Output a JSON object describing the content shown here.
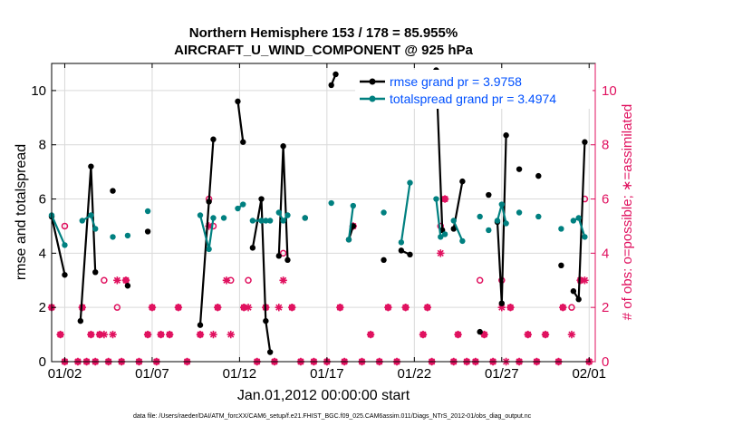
{
  "chart_data": {
    "type": "line",
    "title": "Northern Hemisphere 153 / 178 = 85.955%",
    "subtitle": "AIRCRAFT_U_WIND_COMPONENT @ 925 hPa",
    "xlabel": "Jan.01,2012 00:00:00 start",
    "ylabel": "rmse and totalspread",
    "y2label": "# of obs: o=possible; ∗=assimilated",
    "footer": "data file: /Users/raeder/DAI/ATM_forcXX/CAM6_setup/f.e21.FHIST_BGC.f09_025.CAM6assim.011/Diags_NTrS_2012-01/obs_diag_output.nc",
    "xlim": [
      1.25,
      32.35
    ],
    "ylim": [
      0,
      11
    ],
    "y2lim": [
      0,
      11
    ],
    "xtick_values": [
      2,
      7,
      12,
      17,
      22,
      27,
      32
    ],
    "xtick_labels": [
      "01/02",
      "01/07",
      "01/12",
      "01/17",
      "01/22",
      "01/27",
      "02/01"
    ],
    "ytick_values": [
      0,
      2,
      4,
      6,
      8,
      10
    ],
    "ytick_labels": [
      "0",
      "2",
      "4",
      "6",
      "8",
      "10"
    ],
    "y2tick_values": [
      0,
      2,
      4,
      6,
      8,
      10
    ],
    "y2tick_labels": [
      "0",
      "2",
      "4",
      "6",
      "8",
      "10"
    ],
    "legend_position": "top-right",
    "colors": {
      "rmse": "#000000",
      "spread": "#008080",
      "obs": "#e0115f"
    },
    "series": [
      {
        "name": "rmse grand pr = 3.9758",
        "axis": "left",
        "color": "#000000",
        "points": [
          [
            1.25,
            5.35
          ],
          [
            2.0,
            3.2
          ],
          [
            2.5,
            null
          ],
          [
            2.9,
            1.5
          ],
          [
            3.5,
            7.2
          ],
          [
            3.75,
            3.3
          ],
          [
            4.0,
            null
          ],
          [
            4.75,
            6.3
          ],
          [
            5.25,
            null
          ],
          [
            5.6,
            2.8
          ],
          [
            6.0,
            null
          ],
          [
            6.75,
            4.8
          ],
          [
            7.5,
            null
          ],
          [
            9.75,
            1.35
          ],
          [
            10.25,
            5.9
          ],
          [
            10.5,
            8.2
          ],
          [
            10.75,
            null
          ],
          [
            11.9,
            9.6
          ],
          [
            12.2,
            8.1
          ],
          [
            12.5,
            null
          ],
          [
            12.75,
            4.2
          ],
          [
            13.25,
            6.0
          ],
          [
            13.5,
            1.5
          ],
          [
            13.75,
            0.35
          ],
          [
            14.0,
            null
          ],
          [
            14.25,
            3.9
          ],
          [
            14.5,
            7.95
          ],
          [
            14.75,
            3.75
          ],
          [
            15.0,
            null
          ],
          [
            15.75,
            5.3
          ],
          [
            16.0,
            null
          ],
          [
            17.25,
            10.2
          ],
          [
            17.5,
            10.6
          ],
          [
            17.75,
            null
          ],
          [
            18.25,
            4.5
          ],
          [
            18.5,
            5.0
          ],
          [
            18.75,
            null
          ],
          [
            20.25,
            3.75
          ],
          [
            20.5,
            null
          ],
          [
            21.25,
            4.1
          ],
          [
            21.75,
            3.95
          ],
          [
            22.0,
            null
          ],
          [
            23.25,
            10.75
          ],
          [
            23.6,
            4.85
          ],
          [
            23.75,
            null
          ],
          [
            24.25,
            4.9
          ],
          [
            24.75,
            6.65
          ],
          [
            25.0,
            null
          ],
          [
            25.75,
            1.1
          ],
          [
            26.0,
            null
          ],
          [
            26.25,
            6.15
          ],
          [
            26.5,
            null
          ],
          [
            26.75,
            5.15
          ],
          [
            27.0,
            2.15
          ],
          [
            27.25,
            8.35
          ],
          [
            27.5,
            null
          ],
          [
            28.0,
            7.1
          ],
          [
            28.5,
            null
          ],
          [
            29.1,
            6.85
          ],
          [
            29.5,
            null
          ],
          [
            30.4,
            3.55
          ],
          [
            30.75,
            null
          ],
          [
            31.1,
            2.6
          ],
          [
            31.4,
            2.3
          ],
          [
            31.75,
            8.1
          ],
          [
            32.0,
            null
          ]
        ]
      },
      {
        "name": "totalspread grand pr = 3.4974",
        "axis": "left",
        "color": "#008080",
        "points": [
          [
            1.25,
            5.4
          ],
          [
            2.0,
            4.3
          ],
          [
            2.5,
            null
          ],
          [
            3.0,
            5.2
          ],
          [
            3.5,
            5.4
          ],
          [
            3.75,
            4.9
          ],
          [
            4.0,
            null
          ],
          [
            4.75,
            4.6
          ],
          [
            5.25,
            null
          ],
          [
            5.6,
            4.65
          ],
          [
            6.0,
            null
          ],
          [
            6.75,
            5.55
          ],
          [
            7.5,
            null
          ],
          [
            9.75,
            5.4
          ],
          [
            10.25,
            4.15
          ],
          [
            10.5,
            5.3
          ],
          [
            10.75,
            null
          ],
          [
            11.1,
            5.3
          ],
          [
            11.5,
            null
          ],
          [
            11.9,
            5.65
          ],
          [
            12.2,
            5.8
          ],
          [
            12.5,
            null
          ],
          [
            12.75,
            5.2
          ],
          [
            13.25,
            5.2
          ],
          [
            13.5,
            5.2
          ],
          [
            13.75,
            5.2
          ],
          [
            14.0,
            null
          ],
          [
            14.25,
            5.5
          ],
          [
            14.5,
            5.2
          ],
          [
            14.75,
            5.4
          ],
          [
            15.0,
            null
          ],
          [
            15.75,
            5.3
          ],
          [
            16.0,
            null
          ],
          [
            17.25,
            5.85
          ],
          [
            17.5,
            null
          ],
          [
            18.25,
            4.5
          ],
          [
            18.5,
            5.75
          ],
          [
            18.75,
            null
          ],
          [
            20.25,
            5.5
          ],
          [
            20.5,
            null
          ],
          [
            21.25,
            4.4
          ],
          [
            21.75,
            6.6
          ],
          [
            22.0,
            null
          ],
          [
            23.25,
            6.0
          ],
          [
            23.5,
            4.6
          ],
          [
            23.75,
            4.7
          ],
          [
            24.0,
            null
          ],
          [
            24.25,
            5.2
          ],
          [
            24.75,
            4.45
          ],
          [
            25.0,
            null
          ],
          [
            25.75,
            5.35
          ],
          [
            26.0,
            null
          ],
          [
            26.25,
            4.85
          ],
          [
            26.5,
            null
          ],
          [
            26.75,
            5.2
          ],
          [
            27.0,
            5.8
          ],
          [
            27.25,
            5.1
          ],
          [
            27.5,
            null
          ],
          [
            28.0,
            5.5
          ],
          [
            28.5,
            null
          ],
          [
            29.1,
            5.35
          ],
          [
            29.5,
            null
          ],
          [
            30.4,
            4.9
          ],
          [
            30.75,
            null
          ],
          [
            31.1,
            5.2
          ],
          [
            31.4,
            5.3
          ],
          [
            31.75,
            4.6
          ],
          [
            32.0,
            null
          ]
        ]
      }
    ],
    "obs_possible": [
      [
        1.25,
        2
      ],
      [
        1.75,
        1
      ],
      [
        2.0,
        5
      ],
      [
        2.0,
        0
      ],
      [
        2.75,
        0
      ],
      [
        3.0,
        2
      ],
      [
        3.25,
        0
      ],
      [
        3.5,
        1
      ],
      [
        3.75,
        0
      ],
      [
        4.0,
        1
      ],
      [
        4.25,
        3
      ],
      [
        4.5,
        0
      ],
      [
        5.0,
        2
      ],
      [
        5.25,
        0
      ],
      [
        5.5,
        3
      ],
      [
        6.25,
        0
      ],
      [
        6.75,
        1
      ],
      [
        7.0,
        2
      ],
      [
        7.25,
        0
      ],
      [
        7.5,
        1
      ],
      [
        8.0,
        1
      ],
      [
        8.5,
        2
      ],
      [
        9.0,
        0
      ],
      [
        9.75,
        1
      ],
      [
        10.25,
        6
      ],
      [
        10.5,
        5
      ],
      [
        10.75,
        2
      ],
      [
        11.5,
        3
      ],
      [
        12.25,
        2
      ],
      [
        12.5,
        3
      ],
      [
        13.0,
        0
      ],
      [
        13.5,
        2
      ],
      [
        14.0,
        0
      ],
      [
        14.5,
        4
      ],
      [
        15.0,
        2
      ],
      [
        15.5,
        0
      ],
      [
        16.25,
        0
      ],
      [
        17.0,
        0
      ],
      [
        17.75,
        2
      ],
      [
        18.0,
        0
      ],
      [
        18.5,
        5
      ],
      [
        19.0,
        0
      ],
      [
        19.5,
        1
      ],
      [
        20.0,
        0
      ],
      [
        20.5,
        2
      ],
      [
        21.0,
        0
      ],
      [
        21.5,
        2
      ],
      [
        22.5,
        1
      ],
      [
        22.75,
        2
      ],
      [
        23.0,
        0
      ],
      [
        23.5,
        5
      ],
      [
        23.75,
        6
      ],
      [
        24.25,
        0
      ],
      [
        24.5,
        1
      ],
      [
        25.0,
        0
      ],
      [
        25.5,
        0
      ],
      [
        25.75,
        3
      ],
      [
        26.0,
        1
      ],
      [
        26.5,
        0
      ],
      [
        27.0,
        3
      ],
      [
        27.5,
        2
      ],
      [
        28.0,
        0
      ],
      [
        28.5,
        1
      ],
      [
        29.0,
        0
      ],
      [
        29.5,
        1
      ],
      [
        30.25,
        0
      ],
      [
        30.5,
        2
      ],
      [
        31.0,
        2
      ],
      [
        31.5,
        3
      ],
      [
        31.75,
        6
      ],
      [
        32.0,
        0
      ]
    ],
    "obs_assimilated": [
      [
        1.25,
        2
      ],
      [
        1.75,
        1
      ],
      [
        2.0,
        0
      ],
      [
        2.75,
        0
      ],
      [
        3.0,
        2
      ],
      [
        3.25,
        0
      ],
      [
        3.5,
        1
      ],
      [
        3.75,
        0
      ],
      [
        4.0,
        1
      ],
      [
        4.25,
        1
      ],
      [
        4.5,
        0
      ],
      [
        4.75,
        1
      ],
      [
        5.0,
        3
      ],
      [
        5.25,
        0
      ],
      [
        5.5,
        3
      ],
      [
        6.25,
        0
      ],
      [
        6.75,
        1
      ],
      [
        7.0,
        2
      ],
      [
        7.25,
        0
      ],
      [
        7.5,
        1
      ],
      [
        8.0,
        1
      ],
      [
        8.5,
        2
      ],
      [
        9.0,
        0
      ],
      [
        9.75,
        1
      ],
      [
        10.25,
        5
      ],
      [
        10.5,
        1
      ],
      [
        10.75,
        2
      ],
      [
        11.25,
        3
      ],
      [
        11.5,
        1
      ],
      [
        12.25,
        2
      ],
      [
        12.5,
        2
      ],
      [
        13.0,
        0
      ],
      [
        13.5,
        2
      ],
      [
        14.0,
        0
      ],
      [
        14.25,
        2
      ],
      [
        14.5,
        3
      ],
      [
        15.0,
        2
      ],
      [
        15.5,
        0
      ],
      [
        16.25,
        0
      ],
      [
        17.0,
        0
      ],
      [
        17.75,
        2
      ],
      [
        18.0,
        0
      ],
      [
        18.5,
        5
      ],
      [
        19.0,
        0
      ],
      [
        19.5,
        1
      ],
      [
        20.0,
        0
      ],
      [
        20.5,
        2
      ],
      [
        21.0,
        0
      ],
      [
        21.5,
        2
      ],
      [
        22.5,
        1
      ],
      [
        22.75,
        2
      ],
      [
        23.0,
        0
      ],
      [
        23.5,
        4
      ],
      [
        23.75,
        6
      ],
      [
        24.25,
        0
      ],
      [
        24.5,
        1
      ],
      [
        25.0,
        0
      ],
      [
        25.5,
        0
      ],
      [
        26.0,
        1
      ],
      [
        26.5,
        0
      ],
      [
        27.0,
        2
      ],
      [
        27.25,
        0
      ],
      [
        27.5,
        2
      ],
      [
        28.0,
        0
      ],
      [
        28.5,
        1
      ],
      [
        29.0,
        0
      ],
      [
        29.5,
        1
      ],
      [
        30.25,
        0
      ],
      [
        30.5,
        2
      ],
      [
        31.0,
        1
      ],
      [
        31.5,
        3
      ],
      [
        31.75,
        3
      ],
      [
        32.0,
        0
      ]
    ]
  }
}
